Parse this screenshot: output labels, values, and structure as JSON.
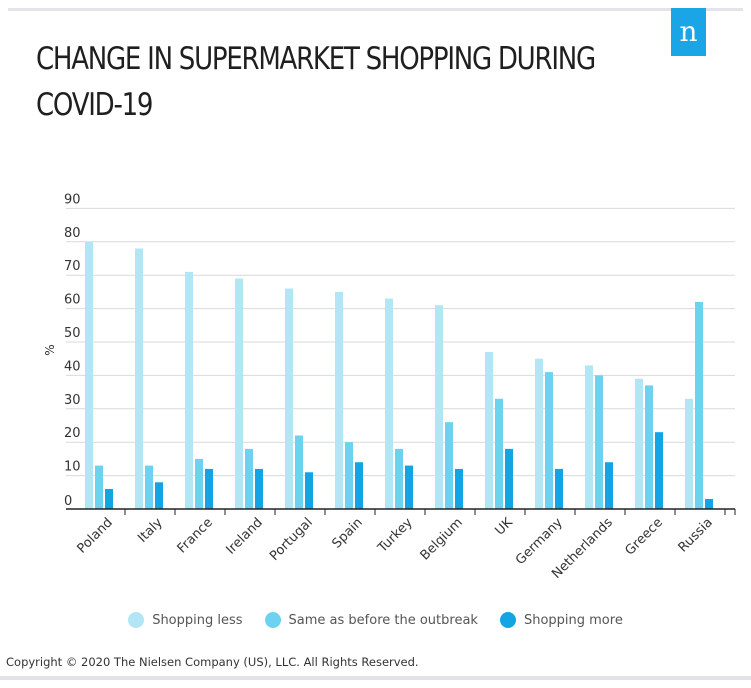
{
  "brand": {
    "logo_letter": "n",
    "color": "#1aa6e6"
  },
  "title": "CHANGE IN SUPERMARKET SHOPPING DURING COVID-19",
  "copyright": "Copyright © 2020 The Nielsen Company (US), LLC. All Rights Reserved.",
  "chart_data": {
    "type": "bar",
    "title": "CHANGE IN SUPERMARKET SHOPPING DURING COVID-19",
    "xlabel": "",
    "ylabel": "%",
    "ylim": [
      0,
      90
    ],
    "yticks": [
      0,
      10,
      20,
      30,
      40,
      50,
      60,
      70,
      80,
      90
    ],
    "grid": true,
    "legend_position": "bottom",
    "categories": [
      "Poland",
      "Italy",
      "France",
      "Ireland",
      "Portugal",
      "Spain",
      "Turkey",
      "Belgium",
      "UK",
      "Germany",
      "Netherlands",
      "Greece",
      "Russia"
    ],
    "series": [
      {
        "name": "Shopping less",
        "color": "#b3e6f5",
        "values": [
          80,
          78,
          71,
          69,
          66,
          65,
          63,
          61,
          47,
          45,
          43,
          39,
          33
        ]
      },
      {
        "name": "Same as before the outbreak",
        "color": "#6dd2f0",
        "values": [
          13,
          13,
          15,
          18,
          22,
          20,
          18,
          26,
          33,
          41,
          40,
          37,
          62
        ]
      },
      {
        "name": "Shopping more",
        "color": "#13a4e4",
        "values": [
          6,
          8,
          12,
          12,
          11,
          14,
          13,
          12,
          18,
          12,
          14,
          23,
          3
        ]
      }
    ]
  }
}
